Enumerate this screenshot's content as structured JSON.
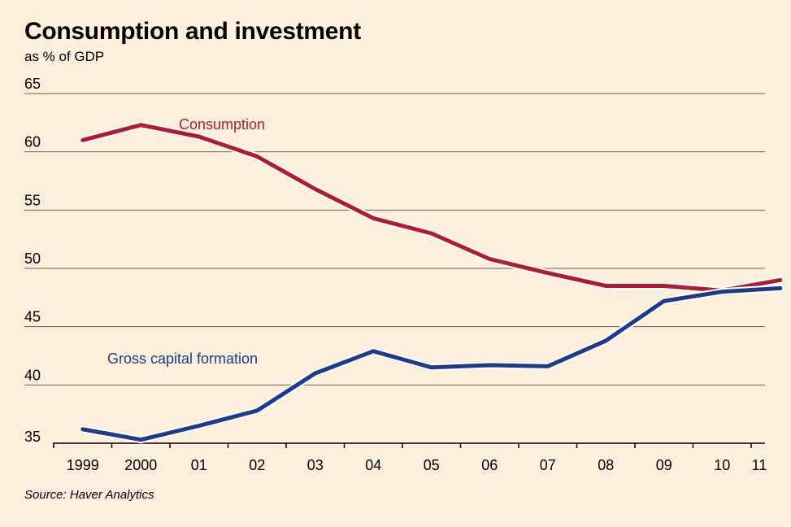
{
  "chart_data": {
    "type": "line",
    "title": "Consumption and investment",
    "subtitle": "as % of GDP",
    "source": "Source: Haver Analytics",
    "x_tick_labels": [
      "1999",
      "2000",
      "01",
      "02",
      "03",
      "04",
      "05",
      "06",
      "07",
      "08",
      "09",
      "10",
      "11"
    ],
    "y_ticks": [
      35,
      40,
      45,
      50,
      55,
      60,
      65
    ],
    "ylim": [
      35,
      65
    ],
    "grid": true,
    "series": [
      {
        "name": "Consumption",
        "color": "#b01c2e",
        "x": [
          1998.5,
          1999.5,
          2000.5,
          2001.5,
          2002.5,
          2003.5,
          2004.5,
          2005.5,
          2006.5,
          2007.5,
          2008.5,
          2009.5,
          2010.5
        ],
        "values": [
          61.0,
          62.3,
          61.3,
          59.6,
          56.8,
          54.3,
          53.0,
          50.8,
          49.6,
          48.5,
          48.5,
          48.1,
          49.0
        ]
      },
      {
        "name": "Gross capital formation",
        "color": "#1e3a8a",
        "x": [
          1998.5,
          1999.5,
          2000.5,
          2001.5,
          2002.5,
          2003.5,
          2004.5,
          2005.5,
          2006.5,
          2007.5,
          2008.5,
          2009.5,
          2010.5
        ],
        "values": [
          36.2,
          35.3,
          36.5,
          37.8,
          41.0,
          42.9,
          41.5,
          41.7,
          41.6,
          43.8,
          47.2,
          48.0,
          48.3
        ]
      }
    ]
  }
}
